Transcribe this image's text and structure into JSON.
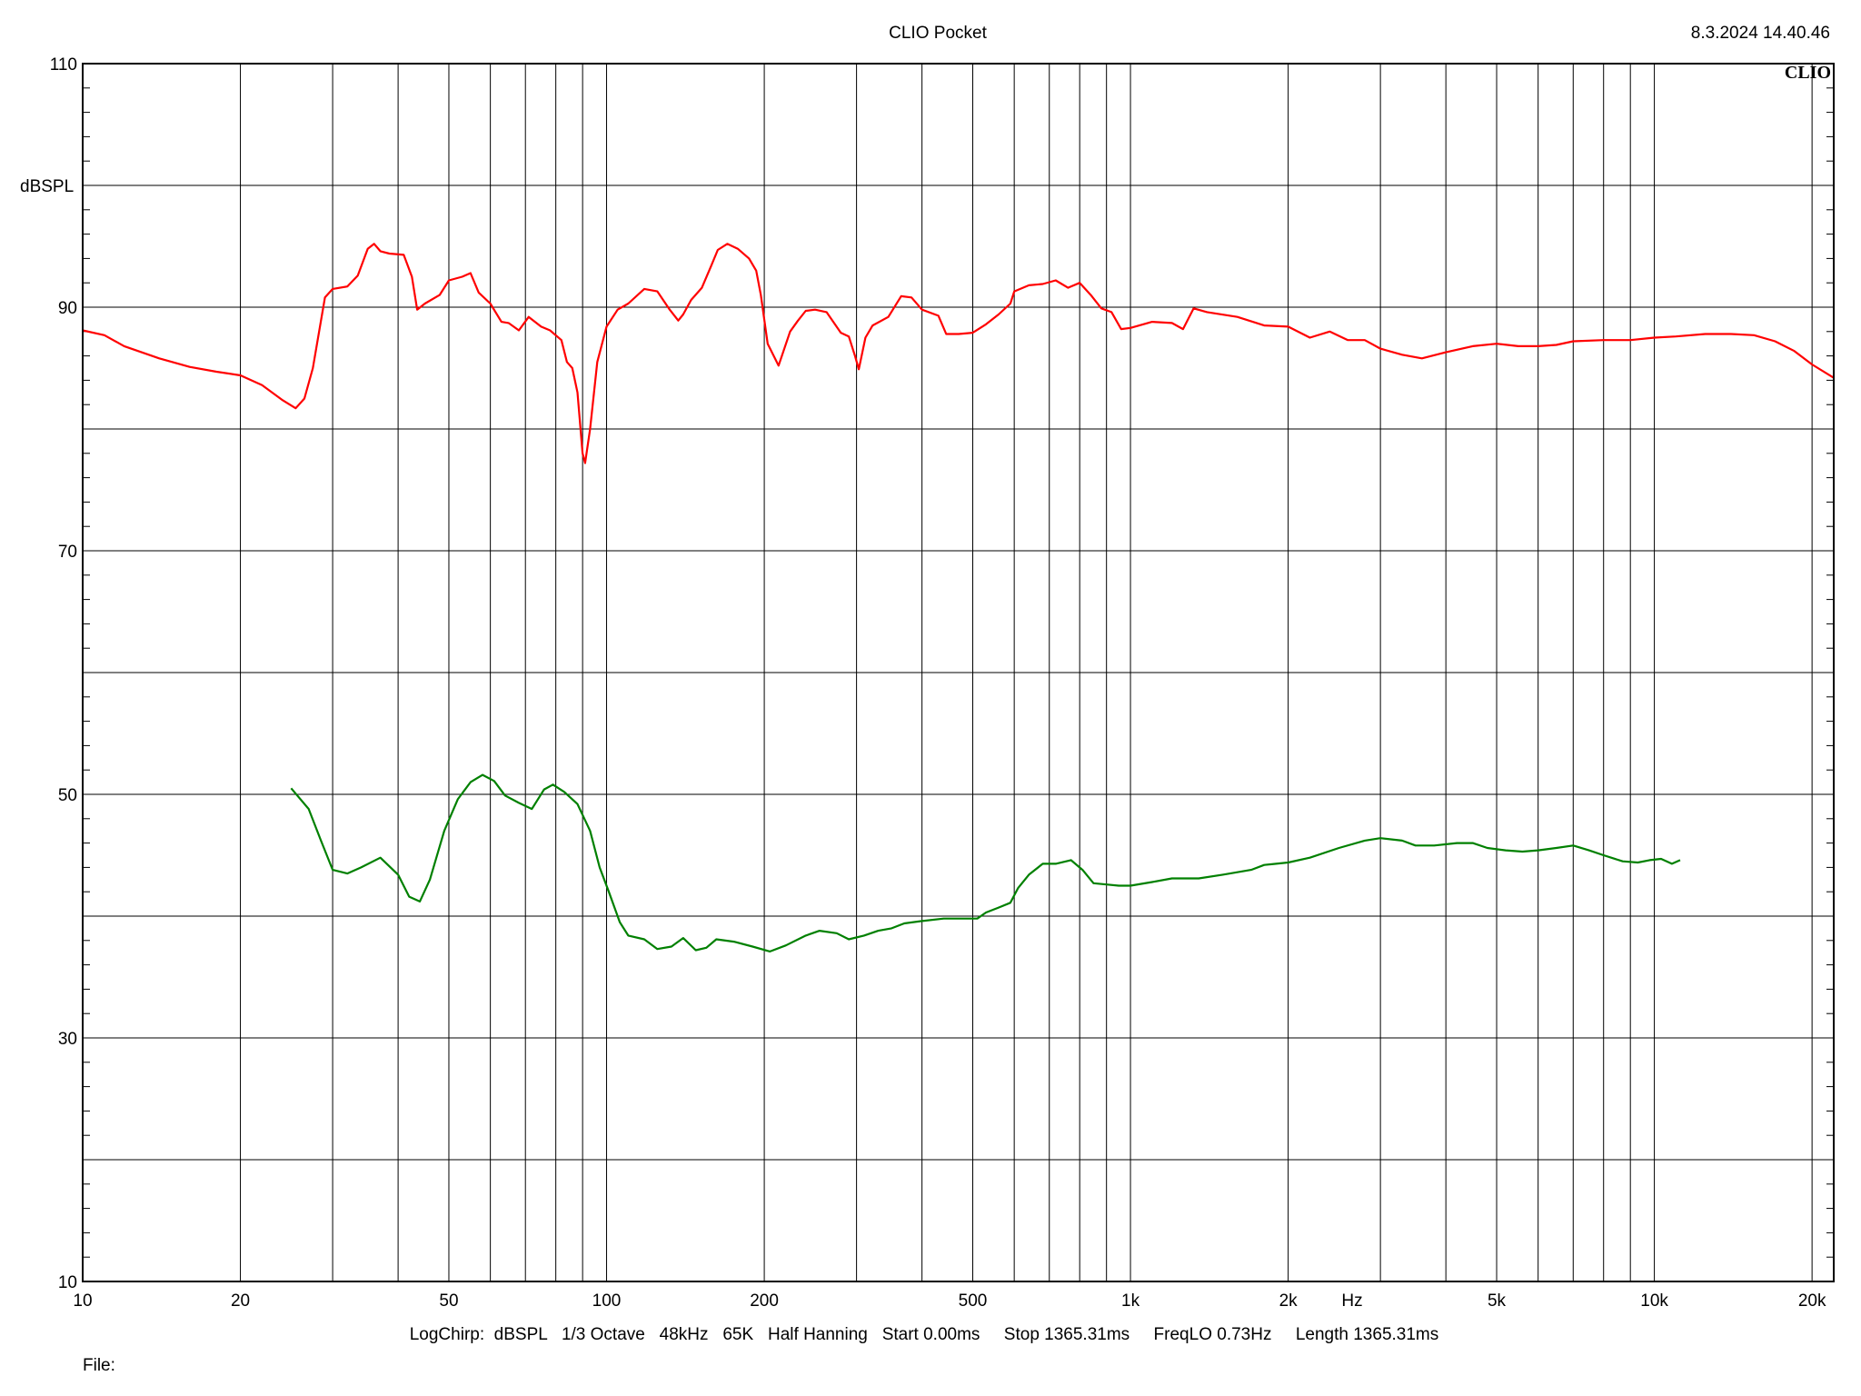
{
  "header": {
    "title": "CLIO Pocket",
    "timestamp": "8.3.2024 14.40.46",
    "logo": "CLIO"
  },
  "footer": {
    "settings": "LogChirp:  dBSPL   1/3 Octave   48kHz   65K   Half Hanning   Start 0.00ms     Stop 1365.31ms     FreqLO 0.73Hz     Length 1365.31ms",
    "file_label": "File:"
  },
  "chart_data": {
    "type": "line",
    "title": "CLIO Pocket",
    "xlabel": "Hz",
    "ylabel": "dBSPL",
    "xscale": "log",
    "xlim": [
      10,
      22000
    ],
    "ylim": [
      10,
      110
    ],
    "grid": true,
    "yticks": [
      10,
      30,
      50,
      70,
      90,
      110
    ],
    "ygrid_step": 10,
    "xticks": [
      {
        "value": 10,
        "label": "10"
      },
      {
        "value": 20,
        "label": "20"
      },
      {
        "value": 50,
        "label": "50"
      },
      {
        "value": 100,
        "label": "100"
      },
      {
        "value": 200,
        "label": "200"
      },
      {
        "value": 500,
        "label": "500"
      },
      {
        "value": 1000,
        "label": "1k"
      },
      {
        "value": 2000,
        "label": "2k"
      },
      {
        "value": 5000,
        "label": "5k"
      },
      {
        "value": 10000,
        "label": "10k"
      },
      {
        "value": 20000,
        "label": "20k"
      }
    ],
    "series": [
      {
        "color": "#ff0000",
        "points": [
          [
            10,
            88.1
          ],
          [
            11,
            87.7
          ],
          [
            12,
            86.8
          ],
          [
            14,
            85.8
          ],
          [
            16,
            85.1
          ],
          [
            18,
            84.7
          ],
          [
            20,
            84.4
          ],
          [
            22,
            83.6
          ],
          [
            24,
            82.4
          ],
          [
            25.5,
            81.7
          ],
          [
            26.5,
            82.5
          ],
          [
            27.5,
            85
          ],
          [
            29,
            90.8
          ],
          [
            30,
            91.5
          ],
          [
            32,
            91.7
          ],
          [
            33.5,
            92.6
          ],
          [
            35,
            94.8
          ],
          [
            36,
            95.2
          ],
          [
            37,
            94.6
          ],
          [
            38.5,
            94.4
          ],
          [
            41,
            94.3
          ],
          [
            42.5,
            92.5
          ],
          [
            43.5,
            89.8
          ],
          [
            45,
            90.3
          ],
          [
            48,
            91
          ],
          [
            50,
            92.2
          ],
          [
            53,
            92.5
          ],
          [
            55,
            92.8
          ],
          [
            57,
            91.2
          ],
          [
            60,
            90.3
          ],
          [
            63,
            88.8
          ],
          [
            65,
            88.7
          ],
          [
            68,
            88.1
          ],
          [
            71,
            89.2
          ],
          [
            75,
            88.4
          ],
          [
            78,
            88.1
          ],
          [
            82,
            87.3
          ],
          [
            84,
            85.5
          ],
          [
            86,
            85
          ],
          [
            88,
            83
          ],
          [
            90,
            78
          ],
          [
            91,
            77.2
          ],
          [
            93,
            80
          ],
          [
            96,
            85.5
          ],
          [
            100,
            88.4
          ],
          [
            105,
            89.8
          ],
          [
            110,
            90.3
          ],
          [
            118,
            91.5
          ],
          [
            125,
            91.3
          ],
          [
            132,
            89.8
          ],
          [
            137,
            88.9
          ],
          [
            140,
            89.4
          ],
          [
            145,
            90.6
          ],
          [
            152,
            91.6
          ],
          [
            158,
            93.3
          ],
          [
            163,
            94.7
          ],
          [
            170,
            95.2
          ],
          [
            178,
            94.8
          ],
          [
            187,
            94
          ],
          [
            193,
            93
          ],
          [
            197,
            91
          ],
          [
            203,
            87
          ],
          [
            213,
            85.2
          ],
          [
            224,
            88
          ],
          [
            232,
            88.9
          ],
          [
            240,
            89.7
          ],
          [
            250,
            89.8
          ],
          [
            263,
            89.6
          ],
          [
            280,
            87.9
          ],
          [
            290,
            87.6
          ],
          [
            298,
            86
          ],
          [
            303,
            84.9
          ],
          [
            312,
            87.5
          ],
          [
            322,
            88.5
          ],
          [
            345,
            89.2
          ],
          [
            365,
            90.9
          ],
          [
            382,
            90.8
          ],
          [
            400,
            89.8
          ],
          [
            430,
            89.3
          ],
          [
            445,
            87.8
          ],
          [
            470,
            87.8
          ],
          [
            500,
            87.9
          ],
          [
            530,
            88.6
          ],
          [
            560,
            89.4
          ],
          [
            590,
            90.3
          ],
          [
            600,
            91.3
          ],
          [
            640,
            91.8
          ],
          [
            680,
            91.9
          ],
          [
            720,
            92.2
          ],
          [
            760,
            91.6
          ],
          [
            800,
            92
          ],
          [
            840,
            91
          ],
          [
            880,
            89.9
          ],
          [
            920,
            89.6
          ],
          [
            960,
            88.2
          ],
          [
            1000,
            88.3
          ],
          [
            1100,
            88.8
          ],
          [
            1200,
            88.7
          ],
          [
            1260,
            88.2
          ],
          [
            1320,
            89.9
          ],
          [
            1400,
            89.6
          ],
          [
            1600,
            89.2
          ],
          [
            1800,
            88.5
          ],
          [
            2000,
            88.4
          ],
          [
            2200,
            87.5
          ],
          [
            2400,
            88
          ],
          [
            2600,
            87.3
          ],
          [
            2800,
            87.3
          ],
          [
            3000,
            86.6
          ],
          [
            3300,
            86.1
          ],
          [
            3600,
            85.8
          ],
          [
            4000,
            86.3
          ],
          [
            4500,
            86.8
          ],
          [
            5000,
            87
          ],
          [
            5500,
            86.8
          ],
          [
            6000,
            86.8
          ],
          [
            6500,
            86.9
          ],
          [
            7000,
            87.2
          ],
          [
            8000,
            87.3
          ],
          [
            9000,
            87.3
          ],
          [
            10000,
            87.5
          ],
          [
            11000,
            87.6
          ],
          [
            12500,
            87.8
          ],
          [
            14000,
            87.8
          ],
          [
            15500,
            87.7
          ],
          [
            17000,
            87.2
          ],
          [
            18500,
            86.4
          ],
          [
            20000,
            85.3
          ],
          [
            22000,
            84.2
          ]
        ]
      },
      {
        "color": "#008000",
        "points": [
          [
            25,
            50.5
          ],
          [
            27,
            48.8
          ],
          [
            28.5,
            46.2
          ],
          [
            30,
            43.8
          ],
          [
            32,
            43.5
          ],
          [
            34,
            44
          ],
          [
            37,
            44.8
          ],
          [
            40,
            43.4
          ],
          [
            42,
            41.6
          ],
          [
            44,
            41.2
          ],
          [
            46,
            43
          ],
          [
            49,
            47
          ],
          [
            52,
            49.6
          ],
          [
            55,
            51
          ],
          [
            58,
            51.6
          ],
          [
            61,
            51.1
          ],
          [
            64,
            49.9
          ],
          [
            68,
            49.3
          ],
          [
            72,
            48.8
          ],
          [
            76,
            50.4
          ],
          [
            79,
            50.8
          ],
          [
            83,
            50.2
          ],
          [
            88,
            49.2
          ],
          [
            93,
            47
          ],
          [
            97,
            44
          ],
          [
            101,
            42
          ],
          [
            106,
            39.5
          ],
          [
            110,
            38.4
          ],
          [
            118,
            38.1
          ],
          [
            125,
            37.3
          ],
          [
            133,
            37.5
          ],
          [
            140,
            38.2
          ],
          [
            148,
            37.2
          ],
          [
            155,
            37.4
          ],
          [
            162,
            38.1
          ],
          [
            175,
            37.9
          ],
          [
            190,
            37.5
          ],
          [
            205,
            37.1
          ],
          [
            220,
            37.6
          ],
          [
            240,
            38.4
          ],
          [
            255,
            38.8
          ],
          [
            275,
            38.6
          ],
          [
            290,
            38.1
          ],
          [
            310,
            38.4
          ],
          [
            330,
            38.8
          ],
          [
            350,
            39
          ],
          [
            370,
            39.4
          ],
          [
            400,
            39.6
          ],
          [
            440,
            39.8
          ],
          [
            480,
            39.8
          ],
          [
            510,
            39.8
          ],
          [
            530,
            40.3
          ],
          [
            560,
            40.7
          ],
          [
            590,
            41.1
          ],
          [
            610,
            42.3
          ],
          [
            640,
            43.4
          ],
          [
            680,
            44.3
          ],
          [
            720,
            44.3
          ],
          [
            770,
            44.6
          ],
          [
            810,
            43.8
          ],
          [
            850,
            42.7
          ],
          [
            900,
            42.6
          ],
          [
            950,
            42.5
          ],
          [
            1000,
            42.5
          ],
          [
            1100,
            42.8
          ],
          [
            1200,
            43.1
          ],
          [
            1350,
            43.1
          ],
          [
            1500,
            43.4
          ],
          [
            1700,
            43.8
          ],
          [
            1800,
            44.2
          ],
          [
            2000,
            44.4
          ],
          [
            2200,
            44.8
          ],
          [
            2500,
            45.6
          ],
          [
            2800,
            46.2
          ],
          [
            3000,
            46.4
          ],
          [
            3300,
            46.2
          ],
          [
            3500,
            45.8
          ],
          [
            3800,
            45.8
          ],
          [
            4200,
            46
          ],
          [
            4500,
            46
          ],
          [
            4800,
            45.6
          ],
          [
            5200,
            45.4
          ],
          [
            5600,
            45.3
          ],
          [
            6000,
            45.4
          ],
          [
            6500,
            45.6
          ],
          [
            7000,
            45.8
          ],
          [
            7500,
            45.4
          ],
          [
            8000,
            45
          ],
          [
            8700,
            44.5
          ],
          [
            9300,
            44.4
          ],
          [
            9800,
            44.6
          ],
          [
            10300,
            44.7
          ],
          [
            10800,
            44.3
          ],
          [
            11200,
            44.6
          ]
        ]
      }
    ]
  }
}
